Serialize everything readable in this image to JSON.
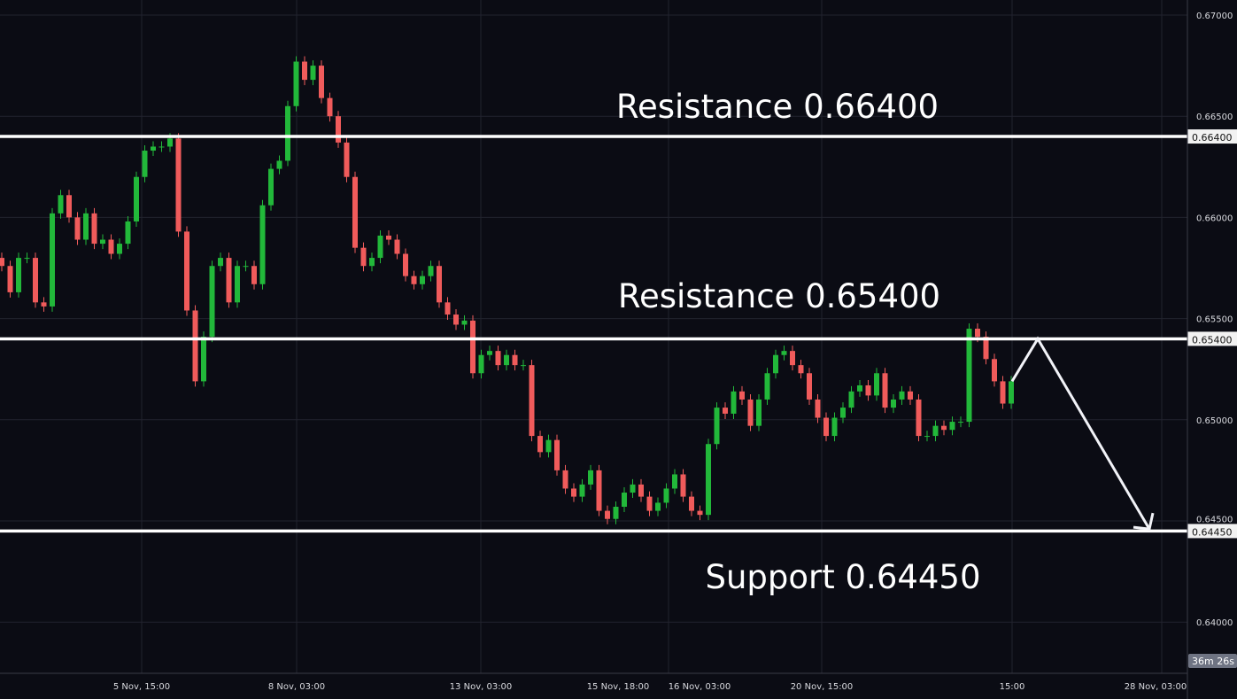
{
  "chart_data": {
    "type": "candlestick",
    "title": "",
    "y_axis": {
      "ylim": [
        0.6375,
        0.6705
      ],
      "ticks": [
        "0.67000",
        "0.66500",
        "0.66000",
        "0.65500",
        "0.65000",
        "0.64500",
        "0.64000"
      ],
      "side": "right"
    },
    "x_axis": {
      "ticks": [
        "5 Nov, 15:00",
        "8 Nov, 03:00",
        "13 Nov, 03:00",
        "15 Nov, 18:00",
        "16 Nov, 03:00",
        "20 Nov, 15:00",
        "15:00",
        "28 Nov, 03:00"
      ]
    },
    "grid": true,
    "colors": {
      "background": "#0b0c14",
      "grid": "#22232e",
      "up": "#22b83a",
      "down": "#f05b5b",
      "levels": "#ffffff"
    },
    "closes": [
      0.6576,
      0.6563,
      0.658,
      0.658,
      0.6558,
      0.6556,
      0.6602,
      0.6611,
      0.66,
      0.6589,
      0.6602,
      0.6587,
      0.6589,
      0.6582,
      0.6587,
      0.6598,
      0.662,
      0.6633,
      0.6635,
      0.6635,
      0.6639,
      0.6593,
      0.6554,
      0.6519,
      0.6541,
      0.6576,
      0.658,
      0.6558,
      0.6576,
      0.6576,
      0.6567,
      0.6606,
      0.6624,
      0.6628,
      0.6655,
      0.6677,
      0.6668,
      0.6675,
      0.6659,
      0.665,
      0.6637,
      0.662,
      0.6585,
      0.6576,
      0.658,
      0.6591,
      0.6589,
      0.6582,
      0.6571,
      0.6567,
      0.6571,
      0.6576,
      0.6558,
      0.6552,
      0.6547,
      0.6549,
      0.6523,
      0.6532,
      0.6534,
      0.6527,
      0.6532,
      0.6527,
      0.6527,
      0.6492,
      0.6484,
      0.649,
      0.6475,
      0.6466,
      0.6462,
      0.6468,
      0.6475,
      0.6455,
      0.6451,
      0.6457,
      0.6464,
      0.6468,
      0.6462,
      0.6455,
      0.6459,
      0.6466,
      0.6473,
      0.6462,
      0.6455,
      0.6453,
      0.6488,
      0.6506,
      0.6503,
      0.6514,
      0.651,
      0.6497,
      0.651,
      0.6523,
      0.6532,
      0.6534,
      0.6527,
      0.6523,
      0.651,
      0.6501,
      0.6492,
      0.6501,
      0.6506,
      0.6514,
      0.6517,
      0.6512,
      0.6523,
      0.6506,
      0.651,
      0.6514,
      0.651,
      0.6492,
      0.6492,
      0.6497,
      0.6495,
      0.6499,
      0.6499,
      0.6545,
      0.6541,
      0.653,
      0.6519,
      0.6508,
      0.6519
    ],
    "levels": [
      {
        "price": 0.664,
        "axis_label": "0.66400",
        "text": "Resistance 0.66400"
      },
      {
        "price": 0.654,
        "axis_label": "0.65400",
        "text": "Resistance 0.65400"
      },
      {
        "price": 0.6445,
        "axis_label": "0.64450",
        "text": "Support 0.64450"
      }
    ],
    "projection": [
      0.6519,
      0.654,
      0.6446
    ],
    "countdown": "36m 26s"
  }
}
